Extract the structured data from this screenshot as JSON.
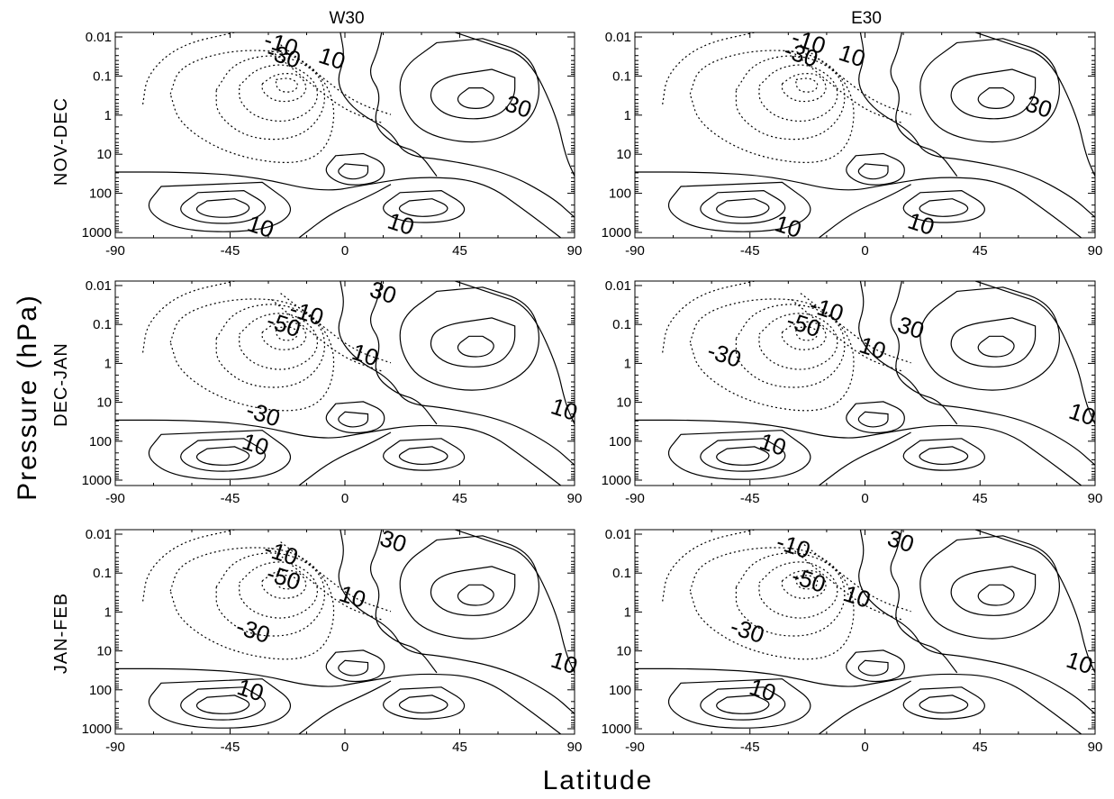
{
  "chart_data": {
    "type": "contour",
    "columns": [
      "W30",
      "E30"
    ],
    "rows": [
      "NOV-DEC",
      "DEC-JAN",
      "JAN-FEB"
    ],
    "ylabel": "Pressure (hPa)",
    "xlabel": "Latitude",
    "x_ticks": [
      "-90",
      "-45",
      "0",
      "45",
      "90"
    ],
    "x_tick_values": [
      -90,
      -45,
      0,
      45,
      90
    ],
    "y_ticks": [
      "0.01",
      "0.1",
      "1",
      "10",
      "100",
      "1000"
    ],
    "y_tick_values": [
      0.01,
      0.1,
      1,
      10,
      100,
      1000
    ],
    "xlim": [
      -90,
      90
    ],
    "ylim": [
      1000,
      0.01
    ],
    "y_scale": "log",
    "contour_interval": 10,
    "negative_contours": "dashed",
    "panels": [
      {
        "column": "W30",
        "row": "NOV-DEC",
        "labels": [
          {
            "text": "-10",
            "lat": -25,
            "p": 0.015
          },
          {
            "text": "-30",
            "lat": -24,
            "p": 0.03
          },
          {
            "text": "10",
            "lat": -5,
            "p": 0.035
          },
          {
            "text": "30",
            "lat": 68,
            "p": 0.6
          },
          {
            "text": "10",
            "lat": -33,
            "p": 700
          },
          {
            "text": "10",
            "lat": 22,
            "p": 600
          }
        ]
      },
      {
        "column": "E30",
        "row": "NOV-DEC",
        "labels": [
          {
            "text": "-10",
            "lat": -22,
            "p": 0.013
          },
          {
            "text": "-30",
            "lat": -25,
            "p": 0.028
          },
          {
            "text": "10",
            "lat": -5,
            "p": 0.03
          },
          {
            "text": "30",
            "lat": 68,
            "p": 0.6
          },
          {
            "text": "10",
            "lat": -30,
            "p": 700
          },
          {
            "text": "10",
            "lat": 22,
            "p": 600
          }
        ]
      },
      {
        "column": "W30",
        "row": "DEC-JAN",
        "labels": [
          {
            "text": "30",
            "lat": 15,
            "p": 0.015
          },
          {
            "text": "-10",
            "lat": -15,
            "p": 0.05
          },
          {
            "text": "-50",
            "lat": -24,
            "p": 0.1
          },
          {
            "text": "10",
            "lat": 8,
            "p": 0.6
          },
          {
            "text": "-30",
            "lat": -32,
            "p": 20
          },
          {
            "text": "10",
            "lat": -35,
            "p": 120
          },
          {
            "text": "10",
            "lat": 86,
            "p": 15
          }
        ]
      },
      {
        "column": "E30",
        "row": "DEC-JAN",
        "labels": [
          {
            "text": "-10",
            "lat": -15,
            "p": 0.04
          },
          {
            "text": "-50",
            "lat": -24,
            "p": 0.1
          },
          {
            "text": "-30",
            "lat": -55,
            "p": 0.6
          },
          {
            "text": "30",
            "lat": 18,
            "p": 0.12
          },
          {
            "text": "10",
            "lat": 3,
            "p": 0.4
          },
          {
            "text": "10",
            "lat": -36,
            "p": 120
          },
          {
            "text": "10",
            "lat": 85,
            "p": 20
          }
        ]
      },
      {
        "column": "W30",
        "row": "JAN-FEB",
        "labels": [
          {
            "text": "30",
            "lat": 19,
            "p": 0.015
          },
          {
            "text": "-10",
            "lat": -25,
            "p": 0.03
          },
          {
            "text": "-50",
            "lat": -24,
            "p": 0.13
          },
          {
            "text": "10",
            "lat": 3,
            "p": 0.4
          },
          {
            "text": "-30",
            "lat": -36,
            "p": 3
          },
          {
            "text": "10",
            "lat": -37,
            "p": 100
          },
          {
            "text": "10",
            "lat": 86,
            "p": 20
          }
        ]
      },
      {
        "column": "E30",
        "row": "JAN-FEB",
        "labels": [
          {
            "text": "30",
            "lat": 14,
            "p": 0.015
          },
          {
            "text": "-10",
            "lat": -28,
            "p": 0.02
          },
          {
            "text": "-50",
            "lat": -22,
            "p": 0.15
          },
          {
            "text": "10",
            "lat": -3,
            "p": 0.4
          },
          {
            "text": "-30",
            "lat": -46,
            "p": 3
          },
          {
            "text": "10",
            "lat": -40,
            "p": 100
          },
          {
            "text": "10",
            "lat": 84,
            "p": 20
          }
        ]
      }
    ]
  }
}
